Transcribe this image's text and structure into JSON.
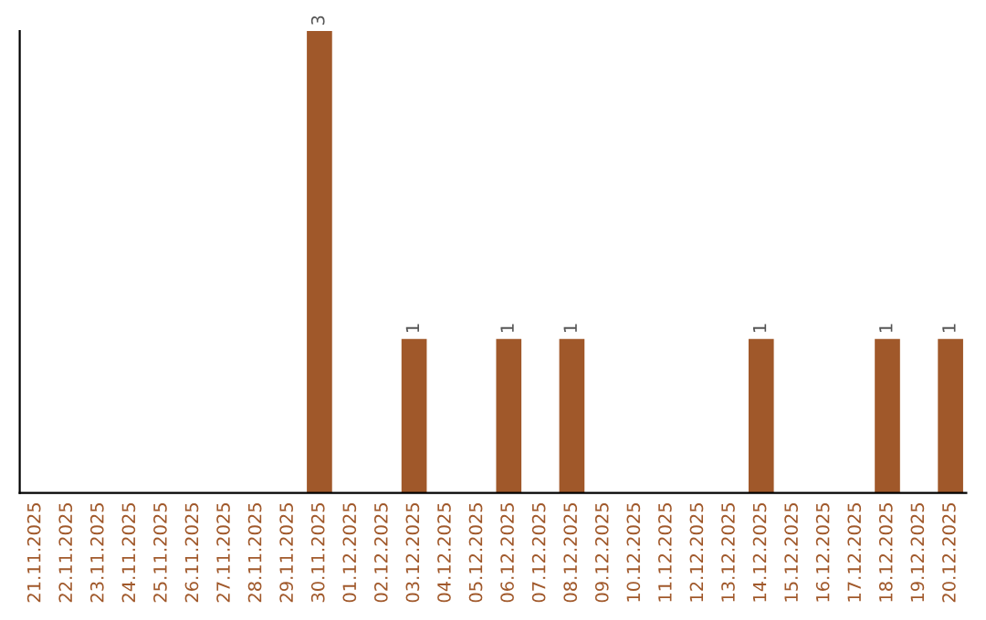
{
  "chart_data": {
    "type": "bar",
    "categories": [
      "21.11.2025",
      "22.11.2025",
      "23.11.2025",
      "24.11.2025",
      "25.11.2025",
      "26.11.2025",
      "27.11.2025",
      "28.11.2025",
      "29.11.2025",
      "30.11.2025",
      "01.12.2025",
      "02.12.2025",
      "03.12.2025",
      "04.12.2025",
      "05.12.2025",
      "06.12.2025",
      "07.12.2025",
      "08.12.2025",
      "09.12.2025",
      "10.12.2025",
      "11.12.2025",
      "12.12.2025",
      "13.12.2025",
      "14.12.2025",
      "15.12.2025",
      "16.12.2025",
      "17.12.2025",
      "18.12.2025",
      "19.12.2025",
      "20.12.2025"
    ],
    "values": [
      0,
      0,
      0,
      0,
      0,
      0,
      0,
      0,
      0,
      3,
      0,
      0,
      1,
      0,
      0,
      1,
      0,
      1,
      0,
      0,
      0,
      0,
      0,
      1,
      0,
      0,
      0,
      1,
      0,
      1
    ],
    "value_labels": [
      null,
      null,
      null,
      null,
      null,
      null,
      null,
      null,
      null,
      "3",
      null,
      null,
      "1",
      null,
      null,
      "1",
      null,
      "1",
      null,
      null,
      null,
      null,
      null,
      "1",
      null,
      null,
      null,
      "1",
      null,
      "1"
    ],
    "color": "#a0582a",
    "grid": false,
    "legend": false,
    "tick_labels": "x"
  }
}
